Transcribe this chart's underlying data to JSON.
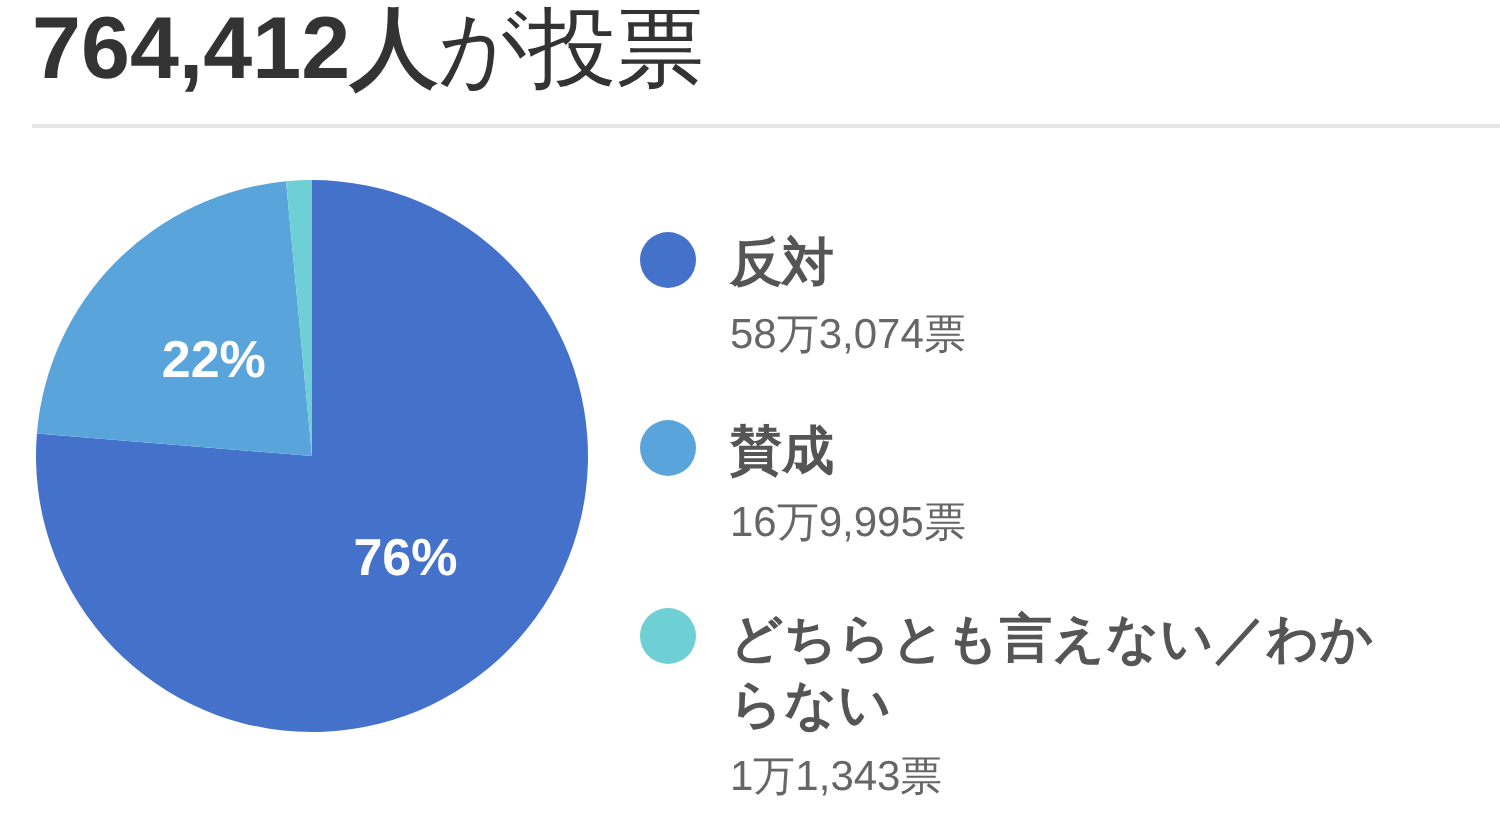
{
  "chart_data": {
    "type": "pie",
    "title": "764,412人が投票",
    "categories": [
      "反対",
      "賛成",
      "どちらとも言えない／わからない"
    ],
    "values": [
      76.3,
      22.2,
      1.5
    ],
    "colors": [
      "#4472ca",
      "#5aa4dc",
      "#6ecfd5"
    ],
    "value_labels": [
      "76%",
      "22%",
      null
    ],
    "annotations": [
      "58万3,074票",
      "16万9,995票",
      "1万1,343票"
    ],
    "legend": "right"
  }
}
